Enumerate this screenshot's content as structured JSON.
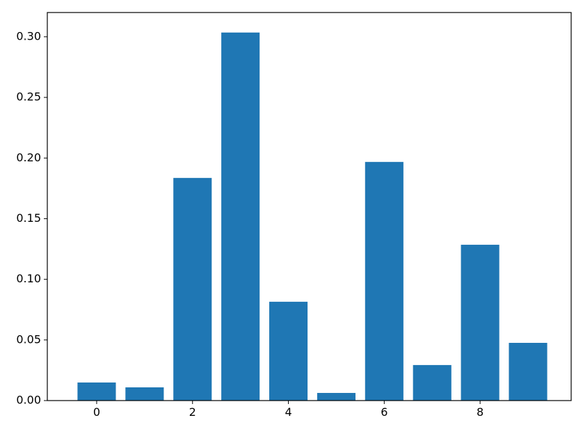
{
  "chart_data": {
    "type": "bar",
    "x": [
      0,
      1,
      2,
      3,
      4,
      5,
      6,
      7,
      8,
      9
    ],
    "values": [
      0.0149,
      0.0109,
      0.1836,
      0.3035,
      0.0815,
      0.0063,
      0.1968,
      0.0293,
      0.1285,
      0.0476
    ],
    "color": "#1f77b4",
    "xlim": [
      -1.03,
      9.9
    ],
    "xticks": [
      0,
      2,
      4,
      6,
      8
    ],
    "ylim": [
      0,
      0.32
    ],
    "yticks": [
      {
        "value": 0,
        "label": "0.00"
      },
      {
        "value": 0.05,
        "label": "0.05"
      },
      {
        "value": 0.1,
        "label": "0.10"
      },
      {
        "value": 0.15,
        "label": "0.15"
      },
      {
        "value": 0.2,
        "label": "0.20"
      },
      {
        "value": 0.25,
        "label": "0.25"
      },
      {
        "value": 0.3,
        "label": "0.30"
      }
    ],
    "grid": false
  }
}
